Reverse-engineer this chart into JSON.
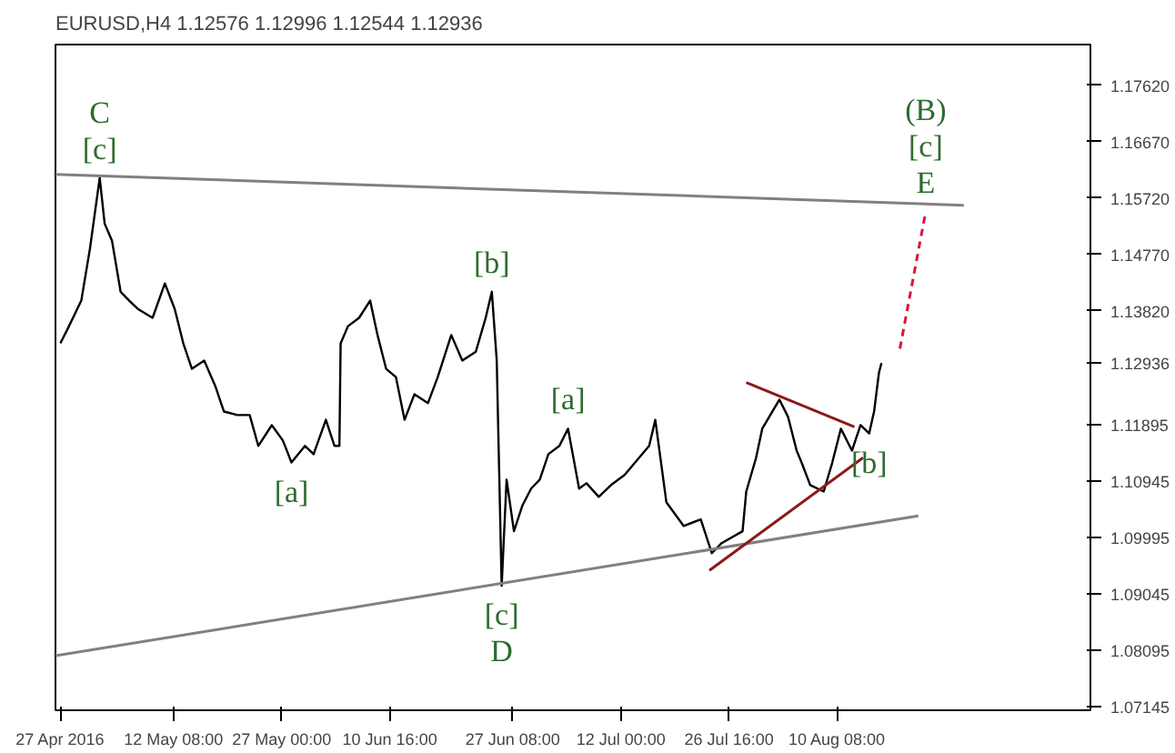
{
  "chart_data": {
    "type": "line",
    "title": "EURUSD,H4 1.12576 1.12996 1.12544 1.12936",
    "xlim": [
      "2016-04-26T08:00",
      "2016-09-13T16:00"
    ],
    "ylim": [
      1.0708,
      1.1831
    ],
    "xticks": [
      {
        "value": "2016-04-27T00:00",
        "label": "27 Apr 2016"
      },
      {
        "value": "2016-05-12T08:00",
        "label": "12 May 08:00"
      },
      {
        "value": "2016-05-27T00:00",
        "label": "27 May 00:00"
      },
      {
        "value": "2016-06-10T16:00",
        "label": "10 Jun 16:00"
      },
      {
        "value": "2016-06-27T08:00",
        "label": "27 Jun 08:00"
      },
      {
        "value": "2016-07-12T00:00",
        "label": "12 Jul 00:00"
      },
      {
        "value": "2016-07-26T16:00",
        "label": "26 Jul 16:00"
      },
      {
        "value": "2016-08-10T08:00",
        "label": "10 Aug 08:00"
      }
    ],
    "yticks": [
      {
        "value": 1.1762,
        "label": "1.17620"
      },
      {
        "value": 1.1667,
        "label": "1.16670"
      },
      {
        "value": 1.1572,
        "label": "1.15720"
      },
      {
        "value": 1.1477,
        "label": "1.14770"
      },
      {
        "value": 1.1382,
        "label": "1.13820"
      },
      {
        "value": 1.12936,
        "label": "1.12936"
      },
      {
        "value": 1.11895,
        "label": "1.11895"
      },
      {
        "value": 1.10945,
        "label": "1.10945"
      },
      {
        "value": 1.09995,
        "label": "1.09995"
      },
      {
        "value": 1.09045,
        "label": "1.09045"
      },
      {
        "value": 1.08095,
        "label": "1.08095"
      },
      {
        "value": 1.07145,
        "label": "1.07145"
      }
    ],
    "grid": false,
    "series": [
      {
        "color": "#000000",
        "x": [
          "2016-04-27T00:00",
          "2016-04-28T04:00",
          "2016-04-29T20:00",
          "2016-05-01T00:00",
          "2016-05-02T08:00",
          "2016-05-03T00:00",
          "2016-05-04T00:00",
          "2016-05-05T04:00",
          "2016-05-06T08:00",
          "2016-05-07T12:00",
          "2016-05-09T12:00",
          "2016-05-11T04:00",
          "2016-05-12T12:00",
          "2016-05-13T16:00",
          "2016-05-14T20:00",
          "2016-05-16T12:00",
          "2016-05-18T00:00",
          "2016-05-19T04:00",
          "2016-05-21T00:00",
          "2016-05-22T16:00",
          "2016-05-23T20:00",
          "2016-05-25T16:00",
          "2016-05-27T04:00",
          "2016-05-28T08:00",
          "2016-05-30T04:00",
          "2016-05-31T08:00",
          "2016-06-02T00:00",
          "2016-06-03T04:00",
          "2016-06-03T20:00",
          "2016-06-04T00:00",
          "2016-06-05T00:00",
          "2016-06-06T12:00",
          "2016-06-08T00:00",
          "2016-06-09T00:00",
          "2016-06-10T04:00",
          "2016-06-11T12:00",
          "2016-06-12T16:00",
          "2016-06-14T00:00",
          "2016-06-15T20:00",
          "2016-06-17T04:00",
          "2016-06-19T00:00",
          "2016-06-20T12:00",
          "2016-06-22T08:00",
          "2016-06-23T16:00",
          "2016-06-24T12:00",
          "2016-06-25T04:00",
          "2016-06-25T20:00",
          "2016-06-26T12:00",
          "2016-06-27T12:00",
          "2016-06-28T16:00",
          "2016-06-29T20:00",
          "2016-07-01T00:00",
          "2016-07-02T04:00",
          "2016-07-03T16:00",
          "2016-07-04T20:00",
          "2016-07-06T08:00",
          "2016-07-07T08:00",
          "2016-07-09T00:00",
          "2016-07-10T16:00",
          "2016-07-12T12:00",
          "2016-07-15T20:00",
          "2016-07-16T16:00",
          "2016-07-18T04:00",
          "2016-07-20T12:00",
          "2016-07-22T20:00",
          "2016-07-24T08:00",
          "2016-07-25T16:00",
          "2016-07-28T12:00",
          "2016-07-29T00:00",
          "2016-07-30T08:00",
          "2016-07-31T04:00",
          "2016-08-02T12:00",
          "2016-08-03T16:00",
          "2016-08-04T20:00",
          "2016-08-05T12:00",
          "2016-08-06T16:00",
          "2016-08-08T12:00",
          "2016-08-09T16:00",
          "2016-08-10T20:00",
          "2016-08-12T08:00",
          "2016-08-13T12:00",
          "2016-08-14T16:00",
          "2016-08-15T08:00",
          "2016-08-16T00:00",
          "2016-08-16T08:00"
        ],
        "values": [
          1.1327,
          1.1356,
          1.1399,
          1.1486,
          1.1606,
          1.1529,
          1.15,
          1.1414,
          1.1399,
          1.1385,
          1.137,
          1.1428,
          1.1385,
          1.1327,
          1.1284,
          1.1298,
          1.1255,
          1.1212,
          1.1206,
          1.1206,
          1.1154,
          1.1189,
          1.1163,
          1.1126,
          1.1154,
          1.114,
          1.1198,
          1.1154,
          1.1154,
          1.1327,
          1.1356,
          1.137,
          1.1399,
          1.1341,
          1.1284,
          1.127,
          1.1198,
          1.1241,
          1.1226,
          1.127,
          1.1341,
          1.1298,
          1.1313,
          1.137,
          1.1414,
          1.1298,
          1.0918,
          1.1097,
          1.101,
          1.1054,
          1.1082,
          1.1097,
          1.114,
          1.1154,
          1.1183,
          1.1082,
          1.1091,
          1.1068,
          1.1088,
          1.1105,
          1.1154,
          1.1198,
          1.1059,
          1.1019,
          1.103,
          1.0973,
          1.099,
          1.101,
          1.1077,
          1.1134,
          1.1183,
          1.1232,
          1.1203,
          1.1146,
          1.1126,
          1.1088,
          1.1077,
          1.1126,
          1.1183,
          1.1146,
          1.1189,
          1.1175,
          1.1212,
          1.1278,
          1.12936
        ]
      },
      {
        "color": "#808080",
        "x": [
          "2016-04-26T08:00",
          "2016-08-27T12:00"
        ],
        "values": [
          1.1612,
          1.156
        ]
      },
      {
        "color": "#808080",
        "x": [
          "2016-04-26T08:00",
          "2016-08-21T08:00"
        ],
        "values": [
          1.08,
          1.1036
        ]
      },
      {
        "color": "#8b1a1a",
        "x": [
          "2016-07-29T00:00",
          "2016-08-12T16:00"
        ],
        "values": [
          1.1261,
          1.1186
        ]
      },
      {
        "color": "#8b1a1a",
        "x": [
          "2016-07-24T00:00",
          "2016-08-13T20:00"
        ],
        "values": [
          1.0944,
          1.1134
        ]
      },
      {
        "color": "#dc143c",
        "x": [
          "2016-08-18T20:00",
          "2016-08-22T08:00"
        ],
        "values": [
          1.1318,
          1.1549
        ],
        "line_style": "dashed"
      }
    ],
    "annotations": [
      {
        "text": "[c]",
        "x": "2016-05-02T08:00",
        "y": 1.1606
      },
      {
        "text": "C",
        "x": "2016-05-02T08:00",
        "y": 1.1606
      },
      {
        "text": "[a]",
        "x": "2016-05-28T08:00",
        "y": 1.1126
      },
      {
        "text": "[b]",
        "x": "2016-06-24T12:00",
        "y": 1.1414
      },
      {
        "text": "[c]",
        "x": "2016-06-25T20:00",
        "y": 1.0918
      },
      {
        "text": "D",
        "x": "2016-06-25T20:00",
        "y": 1.0918
      },
      {
        "text": "[a]",
        "x": "2016-07-04T20:00",
        "y": 1.1183
      },
      {
        "text": "[b]",
        "x": "2016-08-14T16:00",
        "y": 1.1175
      },
      {
        "text": "E",
        "x": "2016-08-22T08:00",
        "y": 1.1549
      },
      {
        "text": "[c]",
        "x": "2016-08-22T08:00",
        "y": 1.1549
      },
      {
        "text": "(B)",
        "x": "2016-08-22T08:00",
        "y": 1.1549
      }
    ]
  }
}
